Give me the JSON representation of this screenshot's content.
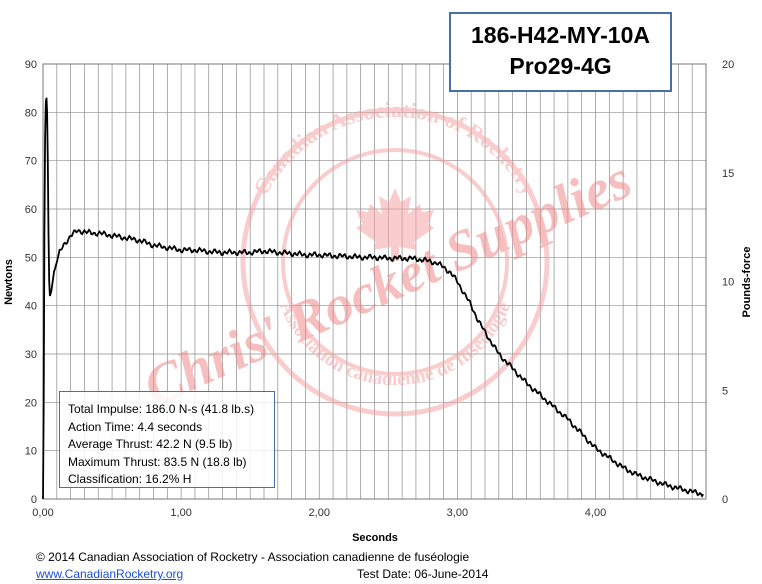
{
  "chart_data": {
    "type": "line",
    "title_lines": [
      "186-H42-MY-10A",
      "Pro29-4G"
    ],
    "xlabel": "Seconds",
    "ylabel": "Newtons",
    "y2label": "Pounds-force",
    "xlim": [
      0,
      4.8
    ],
    "ylim": [
      0,
      90
    ],
    "y2lim": [
      0,
      20
    ],
    "x_ticks": [
      0,
      1,
      2,
      3,
      4
    ],
    "x_tick_labels": [
      "0,00",
      "1,00",
      "2,00",
      "3,00",
      "4,00"
    ],
    "y_ticks": [
      0,
      10,
      20,
      30,
      40,
      50,
      60,
      70,
      80,
      90
    ],
    "y_tick_labels": [
      "0",
      "10",
      "20",
      "30",
      "40",
      "50",
      "60",
      "70",
      "80",
      "90"
    ],
    "y2_ticks": [
      0,
      5,
      10,
      15,
      20
    ],
    "y2_tick_labels": [
      "0",
      "5",
      "10",
      "15",
      "20"
    ],
    "grid": true,
    "line_color": "#000000",
    "x": [
      0,
      0.005,
      0.01,
      0.015,
      0.02,
      0.025,
      0.03,
      0.035,
      0.04,
      0.045,
      0.05,
      0.06,
      0.07,
      0.08,
      0.1,
      0.12,
      0.15,
      0.2,
      0.25,
      0.3,
      0.35,
      0.4,
      0.5,
      0.6,
      0.7,
      0.8,
      0.9,
      1.0,
      1.1,
      1.2,
      1.3,
      1.4,
      1.5,
      1.6,
      1.7,
      1.8,
      1.9,
      2.0,
      2.1,
      2.2,
      2.3,
      2.4,
      2.5,
      2.6,
      2.7,
      2.8,
      2.85,
      2.9,
      2.95,
      3.0,
      3.05,
      3.1,
      3.15,
      3.2,
      3.3,
      3.4,
      3.5,
      3.6,
      3.7,
      3.8,
      3.9,
      4.0,
      4.1,
      4.2,
      4.3,
      4.4,
      4.5,
      4.6,
      4.7,
      4.78
    ],
    "y": [
      0,
      20,
      55,
      75,
      82,
      83,
      80,
      70,
      55,
      45,
      42,
      43,
      45,
      47,
      49,
      51,
      52.5,
      54.5,
      55.5,
      55.3,
      55,
      55,
      54.5,
      54,
      53.5,
      52.5,
      52,
      51.5,
      51.5,
      51.2,
      51,
      51,
      51,
      51.3,
      51,
      50.8,
      50.5,
      50.5,
      50.3,
      50.2,
      50,
      50,
      49.8,
      49.8,
      49.7,
      49.2,
      48.8,
      48,
      46.8,
      45,
      42.5,
      40,
      37,
      34.5,
      30,
      27,
      24,
      21.5,
      19,
      16.5,
      13.5,
      10.5,
      8.5,
      6.5,
      5,
      4,
      3,
      2.2,
      1.5,
      1
    ]
  },
  "title_box": {
    "line1": "186-H42-MY-10A",
    "line2": "Pro29-4G"
  },
  "stats": {
    "total_impulse": "Total Impulse: 186.0 N-s (41.8 lb.s)",
    "action_time": "Action Time: 4.4 seconds",
    "average_thrust": "Average Thrust: 42.2 N (9.5 lb)",
    "maximum_thrust": "Maximum Thrust: 83.5 N (18.8 lb)",
    "classification": "Classification: 16.2% H"
  },
  "footer": {
    "copyright": "© 2014 Canadian Association of Rocketry - Association canadienne de fuséologie",
    "website": "www.CanadianRocketry.org",
    "test_date": "Test  Date: 06-June-2014"
  },
  "watermark": {
    "seal_top": "Canadian Association of Rocketry",
    "seal_bottom": "Association canadienne de fuséologie",
    "overlay": "Chris' Rocket Supplies",
    "color": "#f08a8a"
  }
}
